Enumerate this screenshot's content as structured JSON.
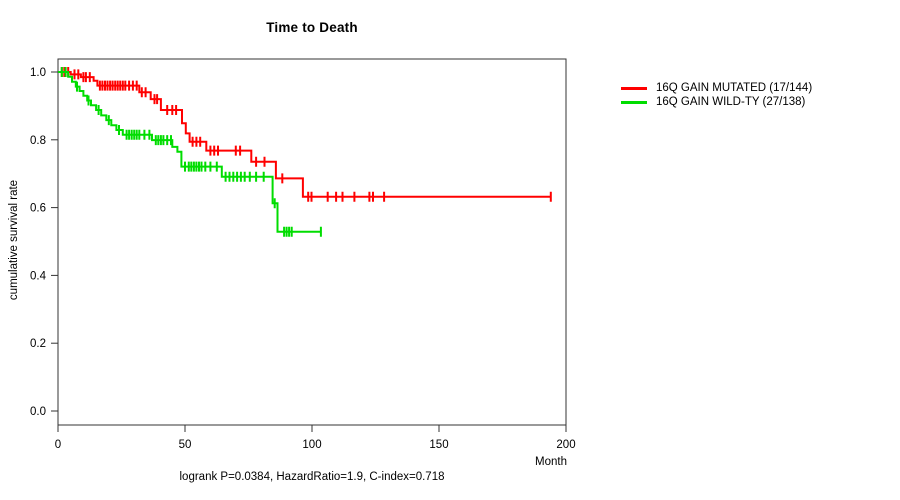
{
  "legend": {
    "items": [
      {
        "label": "16Q GAIN MUTATED (17/144)",
        "color": "#ff0000"
      },
      {
        "label": "16Q GAIN WILD-TY (27/138)",
        "color": "#00dd00"
      }
    ]
  },
  "chart_data": {
    "type": "line",
    "subtype": "kaplan_meier_step",
    "title": "Time to Death",
    "xlabel": "Month",
    "ylabel": "cumulative survival rate",
    "annotation": "logrank P=0.0384, HazardRatio=1.9, C-index=0.718",
    "xlim": [
      0,
      200
    ],
    "ylim": [
      0.0,
      1.0
    ],
    "xticks": [
      0,
      50,
      100,
      150,
      200
    ],
    "yticks": [
      0.0,
      0.2,
      0.4,
      0.6,
      0.8,
      1.0
    ],
    "ytick_labels": [
      "0.0",
      "0.2",
      "0.4",
      "0.6",
      "0.8",
      "1.0"
    ],
    "grid": false,
    "legend_position": "right-outside",
    "frame_color": "#333333",
    "series": [
      {
        "name": "16Q GAIN MUTATED (17/144)",
        "color": "#ff0000",
        "events": 17,
        "n": 144,
        "steps": [
          [
            0,
            1.0
          ],
          [
            5,
            0.993
          ],
          [
            9,
            0.985
          ],
          [
            14,
            0.974
          ],
          [
            15.5,
            0.96
          ],
          [
            32,
            0.94
          ],
          [
            36.5,
            0.92
          ],
          [
            40.5,
            0.888
          ],
          [
            48.8,
            0.849
          ],
          [
            50.3,
            0.819
          ],
          [
            51.8,
            0.794
          ],
          [
            58.4,
            0.768
          ],
          [
            76.1,
            0.735
          ],
          [
            85.8,
            0.686
          ],
          [
            96.4,
            0.632
          ],
          [
            194,
            0.632
          ]
        ],
        "censor_ticks": [
          [
            1.5,
            1.0
          ],
          [
            2.5,
            1.0
          ],
          [
            4,
            1.0
          ],
          [
            6.5,
            0.993
          ],
          [
            8,
            0.993
          ],
          [
            10,
            0.985
          ],
          [
            11,
            0.985
          ],
          [
            12.5,
            0.985
          ],
          [
            16.5,
            0.96
          ],
          [
            17.5,
            0.96
          ],
          [
            18.5,
            0.96
          ],
          [
            19.5,
            0.96
          ],
          [
            20.5,
            0.96
          ],
          [
            21.5,
            0.96
          ],
          [
            22.5,
            0.96
          ],
          [
            23.5,
            0.96
          ],
          [
            24.5,
            0.96
          ],
          [
            25.5,
            0.96
          ],
          [
            26.5,
            0.96
          ],
          [
            28,
            0.96
          ],
          [
            29.5,
            0.96
          ],
          [
            31,
            0.96
          ],
          [
            33,
            0.94
          ],
          [
            34.5,
            0.94
          ],
          [
            38,
            0.92
          ],
          [
            39,
            0.92
          ],
          [
            43,
            0.888
          ],
          [
            45,
            0.888
          ],
          [
            46.5,
            0.888
          ],
          [
            53,
            0.794
          ],
          [
            54.5,
            0.794
          ],
          [
            56,
            0.794
          ],
          [
            60,
            0.768
          ],
          [
            61.5,
            0.768
          ],
          [
            63,
            0.768
          ],
          [
            70,
            0.768
          ],
          [
            71.7,
            0.768
          ],
          [
            78,
            0.735
          ],
          [
            81.3,
            0.735
          ],
          [
            88.3,
            0.686
          ],
          [
            98.5,
            0.632
          ],
          [
            99.8,
            0.632
          ],
          [
            106.2,
            0.632
          ],
          [
            109.5,
            0.632
          ],
          [
            112,
            0.632
          ],
          [
            116.7,
            0.632
          ],
          [
            122.6,
            0.632
          ],
          [
            124,
            0.632
          ],
          [
            128.4,
            0.632
          ],
          [
            194,
            0.632
          ]
        ]
      },
      {
        "name": "16Q GAIN WILD-TY (27/138)",
        "color": "#00dd00",
        "events": 27,
        "n": 138,
        "steps": [
          [
            0,
            1.0
          ],
          [
            4,
            0.986
          ],
          [
            5.5,
            0.971
          ],
          [
            7,
            0.957
          ],
          [
            8.5,
            0.944
          ],
          [
            10,
            0.93
          ],
          [
            11.5,
            0.916
          ],
          [
            13,
            0.902
          ],
          [
            15,
            0.888
          ],
          [
            17,
            0.872
          ],
          [
            19,
            0.858
          ],
          [
            21,
            0.843
          ],
          [
            23,
            0.829
          ],
          [
            25.5,
            0.815
          ],
          [
            37,
            0.799
          ],
          [
            45,
            0.779
          ],
          [
            47,
            0.765
          ],
          [
            48.6,
            0.721
          ],
          [
            64.5,
            0.691
          ],
          [
            84.5,
            0.613
          ],
          [
            86.4,
            0.529
          ],
          [
            103.5,
            0.529
          ]
        ],
        "censor_ticks": [
          [
            1.5,
            1.0
          ],
          [
            3,
            1.0
          ],
          [
            7.5,
            0.957
          ],
          [
            12,
            0.916
          ],
          [
            16,
            0.888
          ],
          [
            20,
            0.858
          ],
          [
            24,
            0.829
          ],
          [
            27,
            0.815
          ],
          [
            28,
            0.815
          ],
          [
            29,
            0.815
          ],
          [
            30,
            0.815
          ],
          [
            31,
            0.815
          ],
          [
            32,
            0.815
          ],
          [
            34,
            0.815
          ],
          [
            36,
            0.815
          ],
          [
            38.5,
            0.799
          ],
          [
            39.5,
            0.799
          ],
          [
            40.5,
            0.799
          ],
          [
            41.5,
            0.799
          ],
          [
            43,
            0.799
          ],
          [
            44.5,
            0.799
          ],
          [
            50,
            0.721
          ],
          [
            51.5,
            0.721
          ],
          [
            52.5,
            0.721
          ],
          [
            53.5,
            0.721
          ],
          [
            54.5,
            0.721
          ],
          [
            55.5,
            0.721
          ],
          [
            56.5,
            0.721
          ],
          [
            58,
            0.721
          ],
          [
            60,
            0.721
          ],
          [
            62.5,
            0.721
          ],
          [
            66,
            0.691
          ],
          [
            67.5,
            0.691
          ],
          [
            69,
            0.691
          ],
          [
            70.5,
            0.691
          ],
          [
            72,
            0.691
          ],
          [
            73.5,
            0.691
          ],
          [
            75.5,
            0.691
          ],
          [
            78,
            0.691
          ],
          [
            81,
            0.691
          ],
          [
            85.3,
            0.613
          ],
          [
            89,
            0.529
          ],
          [
            90,
            0.529
          ],
          [
            91,
            0.529
          ],
          [
            92,
            0.529
          ],
          [
            103.5,
            0.529
          ]
        ]
      }
    ]
  }
}
